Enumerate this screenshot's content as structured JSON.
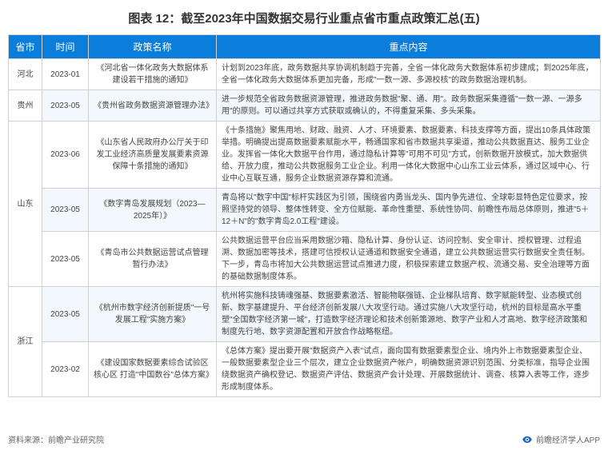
{
  "title": "图表 12：截至2023年中国数据交易行业重点省市重点政策汇总(五)",
  "watermark": "前瞻产业研究院",
  "columns": [
    "省市",
    "时间",
    "政策名称",
    "重点内容"
  ],
  "col_widths": [
    "42px",
    "58px",
    "160px",
    "480px"
  ],
  "header_bg": "#0b7dda",
  "header_fg": "#ffffff",
  "alt_bg": "#f2f8fd",
  "border_color": "#d0d0d0",
  "rows": [
    {
      "province": "河北",
      "prov_rowspan": 1,
      "alt": false,
      "time": "2023-01",
      "policy": "《河北省一体化政务大数据体系建设若干措施的通知》",
      "content": "计划到2023年底，政务数据共享协调机制趋于完善，全省一体化政务大数据体系初步建成；到2025年底，全省一体化政务大数据体系更加完备，形成\"一数一源、多源校核\"的政务数据治理机制。"
    },
    {
      "province": "贵州",
      "prov_rowspan": 1,
      "alt": true,
      "time": "2023-05",
      "policy": "《贵州省政务数据资源管理办法》",
      "content": "进一步规范全省政务数据资源管理，推进政务数据\"聚、通、用\"。政务数据采集遵循\"一数一源、一源多用\"的原则。可以通过共享方式获取或确认的，不得重复采集、多头采集。"
    },
    {
      "province": "山东",
      "prov_rowspan": 3,
      "alt": false,
      "time": "2023-06",
      "policy": "《山东省人民政府办公厅关于印发工业经济高质量发展要素资源保障十条措施的通知》",
      "content": "《十条措施》聚焦用地、财政、融资、人才、环境要素、数据要素、科技支撑等方面，提出10条具体政策举措。明确提出提高数据要素赋能水平，畅通国家和省市数据共享渠道，推动公共数据直达、服务工业企业。发挥省一体化大数据平台作用，通过隐私计算等\"可用不可见\"方式，创新数据开放模式，加大数据供给、开放力度，推动公共数据服务工业企业。利用一体化大数据中心山东工业云体系，通过区域中心、行业中心互联互通，服务企业数据资源存算和流通。"
    },
    {
      "province": "",
      "prov_rowspan": 0,
      "alt": true,
      "time": "2023-05",
      "policy": "《数字青岛发展规划（2023—2025年）》",
      "content": "青岛将以\"数字中国\"标杆实践区为引领，围绕省内勇当龙头、国内争先进位、全球彰显特色定位要求，按照坚持党的领导、整体性转变、全方位赋能、革命性重塑、系统性协同、前瞻性布局总体原则，推进\"5＋12＋N\"的\"数字青岛2.0工程\"建设。"
    },
    {
      "province": "",
      "prov_rowspan": 0,
      "alt": false,
      "time": "2023-05",
      "policy": "《青岛市公共数据运营试点管理暂行办法》",
      "content": "公共数据运营平台应当采用数据沙箱、隐私计算、身份认证、访问控制、安全审计、授权管理、过程追溯、数据加密等技术，搭建可信授权认证通道和数据安全通道，建立公共数据运营实行数据安全责任制。下一步，青岛市将加大公共数据运营试点推进力度，积极探索建立数据产权、流通交易、安全治理等方面的基础数据制度体系。"
    },
    {
      "province": "浙江",
      "prov_rowspan": 2,
      "alt": true,
      "time": "2023-05",
      "policy": "《杭州市数字经济创新提质\"一号发展工程\"实施方案》",
      "content": "杭州将实施科技铸魂强基、数据要素激活、智能物联强链、企业梯队培育、数字赋能转型、业态模式创新、数字基建提升、平台经济创新发展八大攻坚行动。通过实施八大攻坚行动，杭州的目标是高水平重塑\"全国数字经济第一城\"，打造数字经济理论和技术创新策源地、数字产业和人才高地、数字经济政策和制度先行地、数字资源配置和开放合作战略枢纽。"
    },
    {
      "province": "",
      "prov_rowspan": 0,
      "alt": false,
      "time": "2023-02",
      "policy": "《建设国家数据要素综合试验区核心区 打造\"中国数谷\"总体方案》",
      "content": "《总体方案》提出要开展\"数据资产入表\"试点，面向国有数据要素型企业、境内外上市数据要素型企业、一般数据要素型企业三个层次，建立企业数据资产帐户，明确数据资源识别范围、分类标准，指导企业围绕数据资产确权登记、数据资产评估、数据资产会计处理、开展数据统计、调查、核算入表等工作，逐步形成制度体系。"
    }
  ],
  "footer_left": "资料来源：前瞻产业研究院",
  "footer_right": "前瞻经济学人APP"
}
